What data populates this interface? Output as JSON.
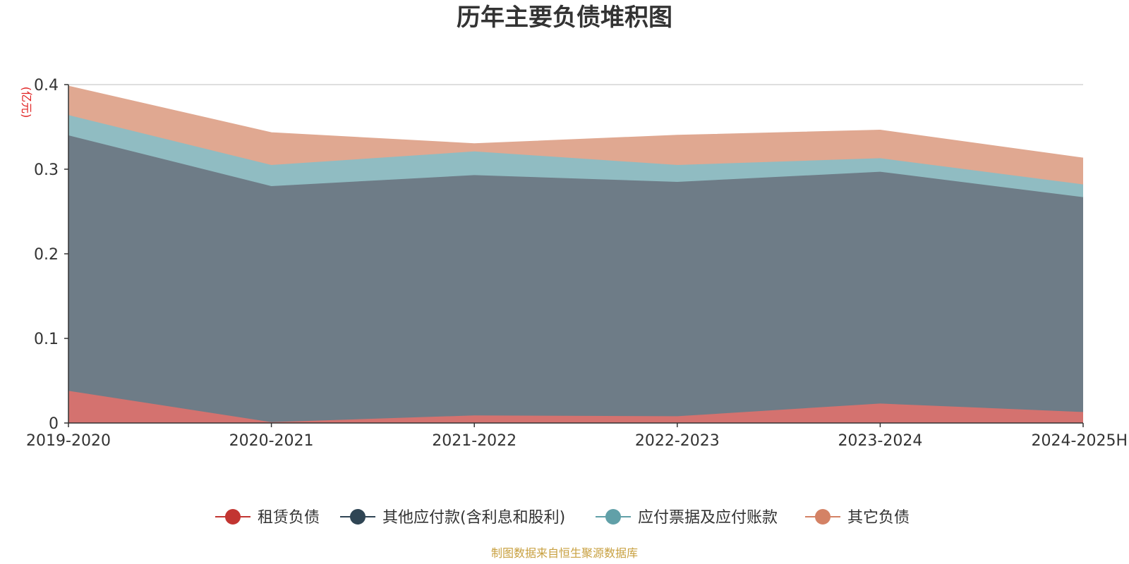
{
  "chart_data": {
    "type": "area",
    "stacked": true,
    "title": "历年主要负债堆积图",
    "ylabel": "",
    "unit": "(亿元)",
    "categories": [
      "2019-2020",
      "2020-2021",
      "2021-2022",
      "2022-2023",
      "2023-2024",
      "2024-2025H"
    ],
    "ylim": [
      0,
      0.4
    ],
    "yticks": [
      "0",
      "0.1",
      "0.2",
      "0.3",
      "0.4"
    ],
    "grid": true,
    "legend_position": "bottom",
    "series": [
      {
        "name": "租赁负债",
        "values": [
          0.038,
          0.001,
          0.009,
          0.008,
          0.023,
          0.013
        ],
        "color": "#c23531",
        "fill": "#d4726f"
      },
      {
        "name": "其他应付款(含利息和股利)",
        "values": [
          0.302,
          0.279,
          0.284,
          0.277,
          0.274,
          0.254
        ],
        "color": "#2f4554",
        "fill": "#6e7c87"
      },
      {
        "name": "应付票据及应付账款",
        "values": [
          0.024,
          0.025,
          0.028,
          0.02,
          0.016,
          0.015
        ],
        "color": "#61a0a8",
        "fill": "#90bcc2"
      },
      {
        "name": "其它负债",
        "values": [
          0.034,
          0.038,
          0.009,
          0.035,
          0.033,
          0.031
        ],
        "color": "#d48265",
        "fill": "#e0a891"
      }
    ],
    "source": "制图数据来自恒生聚源数据库"
  }
}
